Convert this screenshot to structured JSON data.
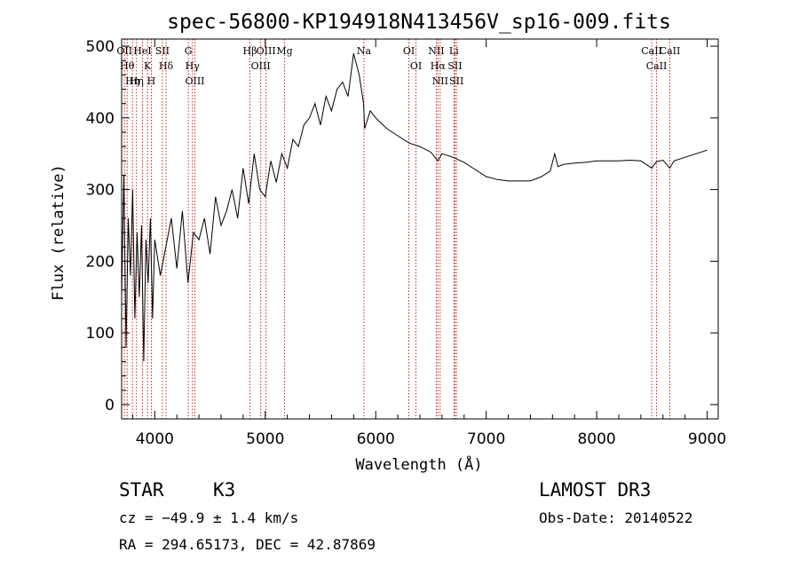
{
  "chart_data": {
    "type": "line",
    "title": "spec-56800-KP194918N413456V_sp16-009.fits",
    "xlabel": "Wavelength (Å)",
    "ylabel": "Flux (relative)",
    "xlim": [
      3700,
      9100
    ],
    "ylim": [
      -20,
      510
    ],
    "xticks": [
      4000,
      5000,
      6000,
      7000,
      8000,
      9000
    ],
    "yticks": [
      0,
      100,
      200,
      300,
      400,
      500
    ],
    "series": [
      {
        "name": "flux",
        "x": [
          3700,
          3720,
          3740,
          3760,
          3780,
          3800,
          3820,
          3840,
          3860,
          3880,
          3900,
          3920,
          3940,
          3960,
          3980,
          4000,
          4050,
          4100,
          4150,
          4200,
          4250,
          4300,
          4350,
          4400,
          4450,
          4500,
          4550,
          4600,
          4650,
          4700,
          4750,
          4800,
          4850,
          4900,
          4950,
          5000,
          5050,
          5100,
          5150,
          5200,
          5250,
          5300,
          5350,
          5400,
          5450,
          5500,
          5550,
          5600,
          5650,
          5700,
          5750,
          5800,
          5850,
          5890,
          5900,
          5950,
          6000,
          6100,
          6200,
          6300,
          6400,
          6500,
          6563,
          6600,
          6700,
          6800,
          6900,
          7000,
          7100,
          7200,
          7300,
          7400,
          7500,
          7580,
          7620,
          7650,
          7700,
          7800,
          7900,
          8000,
          8100,
          8200,
          8300,
          8400,
          8498,
          8542,
          8600,
          8662,
          8700,
          8800,
          8900,
          9000
        ],
        "y": [
          150,
          320,
          80,
          260,
          180,
          300,
          120,
          240,
          150,
          250,
          60,
          230,
          170,
          260,
          120,
          230,
          180,
          220,
          260,
          190,
          270,
          170,
          240,
          230,
          260,
          210,
          290,
          250,
          270,
          300,
          260,
          330,
          280,
          350,
          300,
          290,
          340,
          310,
          350,
          330,
          370,
          360,
          390,
          400,
          420,
          390,
          430,
          410,
          440,
          450,
          430,
          490,
          460,
          420,
          385,
          410,
          400,
          385,
          375,
          365,
          360,
          352,
          340,
          350,
          345,
          338,
          328,
          318,
          314,
          312,
          312,
          312,
          318,
          326,
          350,
          332,
          335,
          337,
          338,
          340,
          340,
          340,
          341,
          340,
          330,
          339,
          341,
          330,
          340,
          345,
          350,
          355
        ]
      }
    ],
    "lines": [
      {
        "wave": 3726,
        "label": "OII"
      },
      {
        "wave": 3750,
        "label": "Hθ"
      },
      {
        "wave": 3798,
        "label": "Hη"
      },
      {
        "wave": 3835,
        "label": "Hη"
      },
      {
        "wave": 3889,
        "label": "HeI"
      },
      {
        "wave": 3934,
        "label": "K"
      },
      {
        "wave": 3969,
        "label": "H"
      },
      {
        "wave": 4069,
        "label": "SII"
      },
      {
        "wave": 4102,
        "label": "Hδ"
      },
      {
        "wave": 4304,
        "label": "G"
      },
      {
        "wave": 4341,
        "label": "Hγ"
      },
      {
        "wave": 4363,
        "label": "OIII"
      },
      {
        "wave": 4861,
        "label": "Hβ"
      },
      {
        "wave": 4959,
        "label": "OIII"
      },
      {
        "wave": 5007,
        "label": "OIII"
      },
      {
        "wave": 5175,
        "label": "Mg"
      },
      {
        "wave": 5893,
        "label": "Na"
      },
      {
        "wave": 6300,
        "label": "OI"
      },
      {
        "wave": 6364,
        "label": "OI"
      },
      {
        "wave": 6548,
        "label": "NII"
      },
      {
        "wave": 6563,
        "label": "Hα"
      },
      {
        "wave": 6583,
        "label": "NII"
      },
      {
        "wave": 6708,
        "label": "Li"
      },
      {
        "wave": 6717,
        "label": "SII"
      },
      {
        "wave": 6731,
        "label": "SII"
      },
      {
        "wave": 8498,
        "label": "CaII"
      },
      {
        "wave": 8542,
        "label": "CaII"
      },
      {
        "wave": 8662,
        "label": "CaII"
      }
    ]
  },
  "info": {
    "class": "STAR",
    "subclass": "K3",
    "survey": "LAMOST DR3",
    "cz": "cz = −49.9 ± 1.4 km/s",
    "obs_date": "Obs-Date: 20140522",
    "coords": "RA = 294.65173, DEC =  42.87869"
  },
  "colors": {
    "axis": "#000000",
    "spectrum": "#000000",
    "line_marker": "#cc2222"
  }
}
